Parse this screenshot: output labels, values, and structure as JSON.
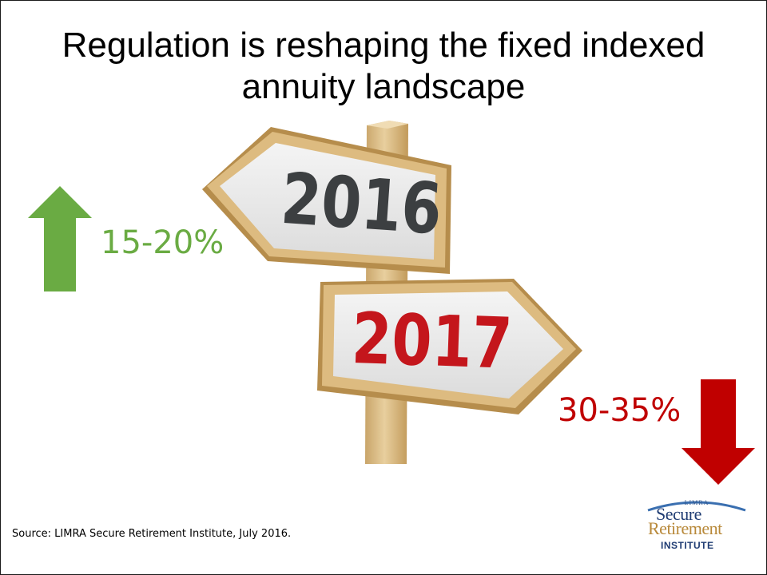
{
  "title": "Regulation is reshaping the fixed indexed annuity landscape",
  "signs": {
    "left": {
      "year": "2016",
      "text_color": "#3c3f41"
    },
    "right": {
      "year": "2017",
      "text_color": "#c4161c"
    }
  },
  "stats": {
    "up": {
      "value": "15-20%",
      "color": "#6aab43",
      "icon": "up-arrow-icon"
    },
    "down": {
      "value": "30-35%",
      "color": "#c00000",
      "icon": "down-arrow-icon"
    }
  },
  "source": "Source:  LIMRA Secure Retirement Institute, July 2016.",
  "logo": {
    "top": "LIMRA",
    "line1": "Secure",
    "line2": "Retirement",
    "line3": "INSTITUTE"
  },
  "colors": {
    "sign_face": "#ebebeb",
    "sign_frame": "#d4b277",
    "post": "#dfc28d"
  }
}
